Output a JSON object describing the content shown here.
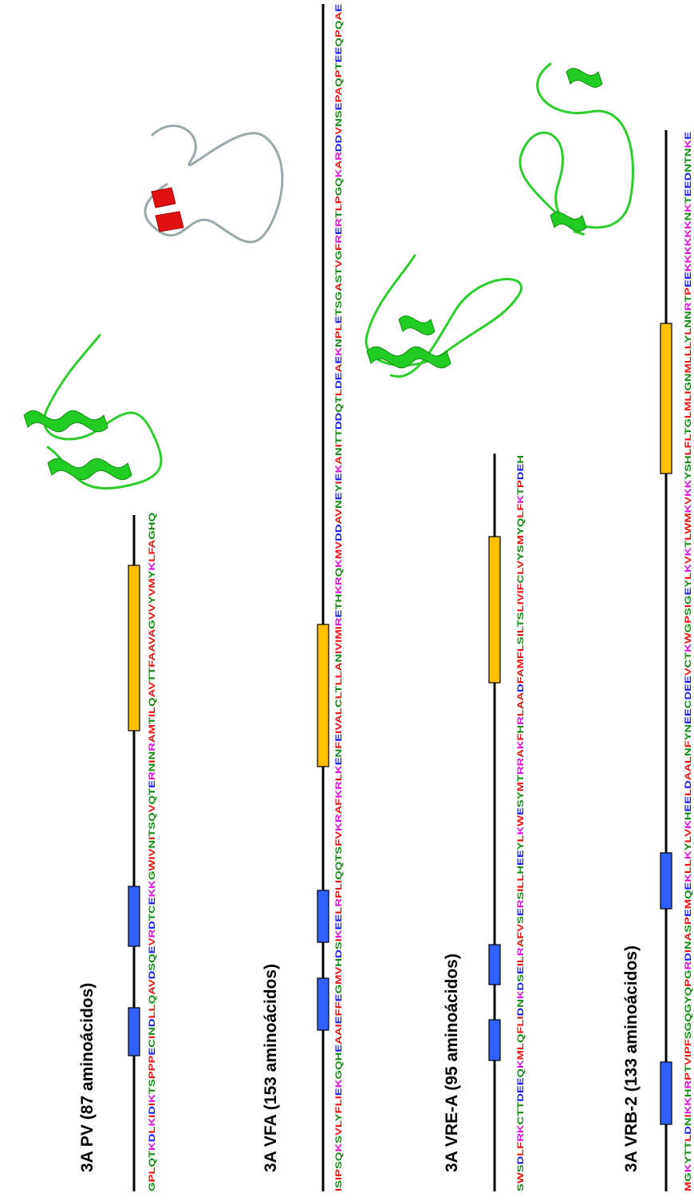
{
  "panels": [
    {
      "title": "3A PV (87 aminoácidos)",
      "sequence": "GPLQTKDLKIDIKTSPPPECINDLLQAVDSQEVRDTCEKKGWIVNITSQVQTERNINRAMTILQAVTTFAAVAGVVYVMYKLFAGHQ"
    },
    {
      "title": "3A VFA (153 aminoácidos)",
      "sequence": "ISIPSQKSVLYFLIEKGQHEAAIEFFEGMVHDSIKEELRPLIQQTSFVKRAFKRLKENFEIVALCLTLLANIVIMIRETHKRQKMVDDAVNEYIEKANITTDDQTLDEAEKNPLETSGASTVGFRERTLPGQKARDDVNSEPAQPTEEQPQAE"
    },
    {
      "title": "3A VRE-A (95 aminoácidos)",
      "sequence": "SWSDLFRKCTTDEEQKMLQFLIDNKDSEILRAFVSERSILLHEEYLKWESYMTRRAKFHRLAADFAMFLSILTSLIVIFCLVYSMYQLFKTPDEH"
    },
    {
      "title": "3A VRB-2 (133 aminoácidos)",
      "sequence": "MGKYTTLDNIKKHRPTVIPFSGQGYQPGRDINASPEMQEKLLKYLVKHEELDAALNFYNEECDEEVCTKWGPSIGEYLKVKTLWMKVKKYSHLFLTGLMLIGNMLLLYLNNRTPEEKKKKKKNKTEEDNTNKE"
    }
  ]
}
